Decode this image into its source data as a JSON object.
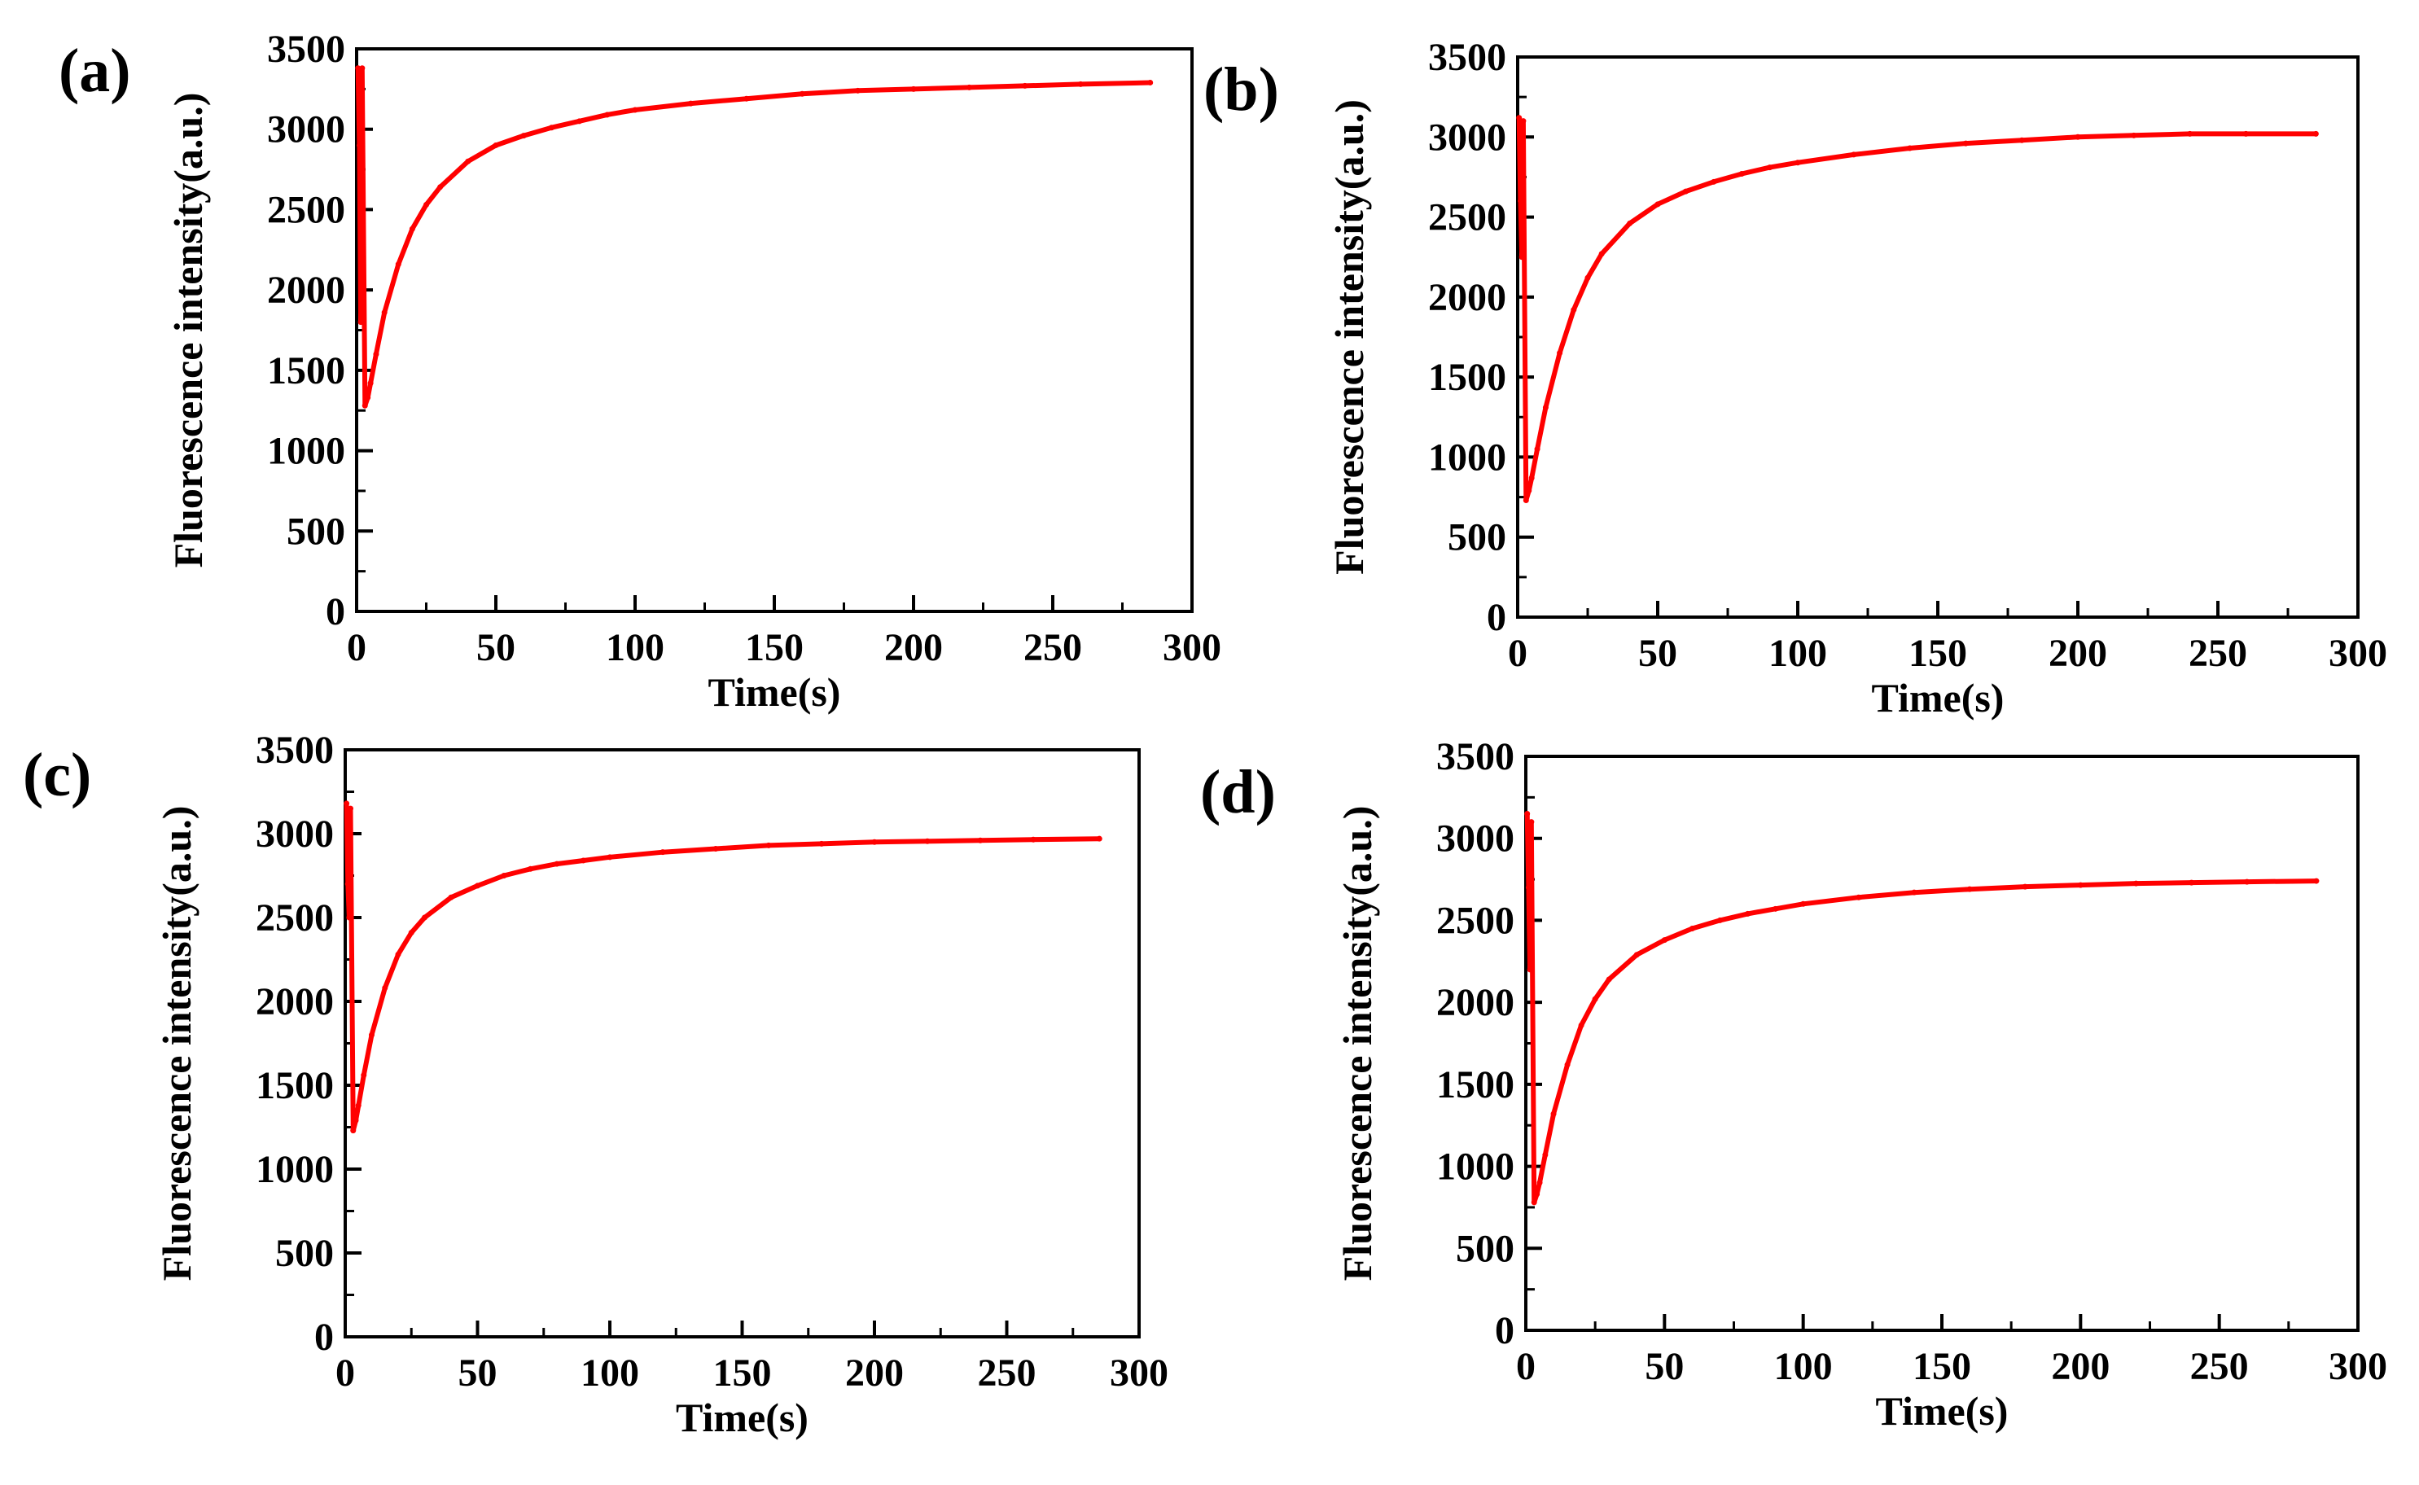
{
  "chart_data": [
    {
      "panel_label": "(a)",
      "type": "line",
      "xlabel": "Time(s)",
      "ylabel": "Fluorescence intensity(a.u.)",
      "xlim": [
        0,
        300
      ],
      "ylim": [
        0,
        3500
      ],
      "xticks": [
        "0",
        "50",
        "100",
        "150",
        "200",
        "250",
        "300"
      ],
      "yticks": [
        "0",
        "500",
        "1000",
        "1500",
        "2000",
        "2500",
        "3000",
        "3500"
      ],
      "series": [
        {
          "color": "#ff0000",
          "x": [
            0.5,
            1,
            1.5,
            2,
            3,
            4,
            5,
            7,
            10,
            15,
            20,
            25,
            30,
            40,
            50,
            60,
            70,
            80,
            90,
            100,
            120,
            140,
            160,
            180,
            200,
            220,
            240,
            260,
            285
          ],
          "y": [
            3380,
            2900,
            1800,
            3380,
            1280,
            1330,
            1420,
            1600,
            1860,
            2160,
            2380,
            2530,
            2640,
            2800,
            2900,
            2960,
            3010,
            3050,
            3090,
            3120,
            3160,
            3190,
            3220,
            3240,
            3250,
            3260,
            3270,
            3280,
            3290
          ]
        }
      ]
    },
    {
      "panel_label": "(b)",
      "type": "line",
      "xlabel": "Time(s)",
      "ylabel": "Fluorescence intensity(a.u.)",
      "xlim": [
        0,
        300
      ],
      "ylim": [
        0,
        3500
      ],
      "xticks": [
        "0",
        "50",
        "100",
        "150",
        "200",
        "250",
        "300"
      ],
      "yticks": [
        "0",
        "500",
        "1000",
        "1500",
        "2000",
        "2500",
        "3000",
        "3500"
      ],
      "series": [
        {
          "color": "#ff0000",
          "x": [
            0.5,
            1,
            1.5,
            2,
            3,
            4,
            5,
            7,
            10,
            15,
            20,
            25,
            30,
            40,
            50,
            60,
            70,
            80,
            90,
            100,
            120,
            140,
            160,
            180,
            200,
            220,
            240,
            260,
            285
          ],
          "y": [
            3120,
            2600,
            2250,
            3100,
            730,
            790,
            870,
            1050,
            1310,
            1650,
            1920,
            2120,
            2270,
            2460,
            2580,
            2660,
            2720,
            2770,
            2810,
            2840,
            2890,
            2930,
            2960,
            2980,
            3000,
            3010,
            3020,
            3020,
            3020
          ]
        }
      ]
    },
    {
      "panel_label": "(c)",
      "type": "line",
      "xlabel": "Time(s)",
      "ylabel": "Fluorescence intensity(a.u.)",
      "xlim": [
        0,
        300
      ],
      "ylim": [
        0,
        3500
      ],
      "xticks": [
        "0",
        "50",
        "100",
        "150",
        "200",
        "250",
        "300"
      ],
      "yticks": [
        "0",
        "500",
        "1000",
        "1500",
        "2000",
        "2500",
        "3000",
        "3500"
      ],
      "series": [
        {
          "color": "#ff0000",
          "x": [
            0.5,
            1,
            1.5,
            2,
            3,
            4,
            5,
            7,
            10,
            15,
            20,
            25,
            30,
            40,
            50,
            60,
            70,
            80,
            90,
            100,
            120,
            140,
            160,
            180,
            200,
            220,
            240,
            260,
            285
          ],
          "y": [
            3180,
            2700,
            2500,
            3150,
            1230,
            1290,
            1380,
            1560,
            1800,
            2080,
            2280,
            2410,
            2500,
            2620,
            2690,
            2750,
            2790,
            2820,
            2840,
            2860,
            2890,
            2910,
            2930,
            2940,
            2950,
            2955,
            2960,
            2965,
            2970
          ]
        }
      ]
    },
    {
      "panel_label": "(d)",
      "type": "line",
      "xlabel": "Time(s)",
      "ylabel": "Fluorescence intensity(a.u.)",
      "xlim": [
        0,
        300
      ],
      "ylim": [
        0,
        3500
      ],
      "xticks": [
        "0",
        "50",
        "100",
        "150",
        "200",
        "250",
        "300"
      ],
      "yticks": [
        "0",
        "500",
        "1000",
        "1500",
        "2000",
        "2500",
        "3000",
        "3500"
      ],
      "series": [
        {
          "color": "#ff0000",
          "x": [
            0.5,
            1,
            1.5,
            2,
            3,
            4,
            5,
            7,
            10,
            15,
            20,
            25,
            30,
            40,
            50,
            60,
            70,
            80,
            90,
            100,
            120,
            140,
            160,
            180,
            200,
            220,
            240,
            260,
            285
          ],
          "y": [
            3150,
            2700,
            2200,
            3100,
            780,
            830,
            900,
            1070,
            1320,
            1620,
            1860,
            2020,
            2140,
            2290,
            2380,
            2450,
            2500,
            2540,
            2570,
            2600,
            2640,
            2670,
            2690,
            2705,
            2715,
            2725,
            2730,
            2735,
            2740
          ]
        }
      ]
    }
  ]
}
